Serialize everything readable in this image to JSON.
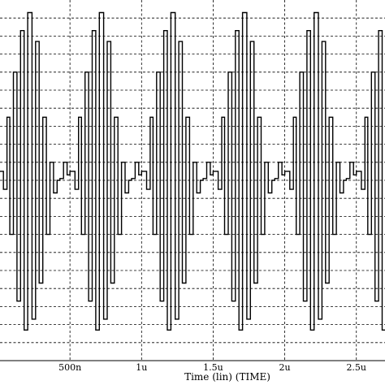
{
  "chart_data": {
    "type": "line",
    "title": "",
    "xlabel": "Time (lin) (TIME)",
    "ylabel": "",
    "xlim": [
      0.0,
      2.7
    ],
    "ylim": [
      -1.05,
      0.95
    ],
    "x_unit": "u",
    "x_ticks": [
      {
        "value": 0.5,
        "label": "500n"
      },
      {
        "value": 1.0,
        "label": "1u"
      },
      {
        "value": 1.5,
        "label": "1.5u"
      },
      {
        "value": 2.0,
        "label": "2u"
      },
      {
        "value": 2.5,
        "label": "2.5u"
      }
    ],
    "grid": {
      "horizontal": true,
      "vertical": true,
      "style": "dashed"
    },
    "series": [
      {
        "values": [
          {
            "t": 0.0,
            "y": 0.0
          },
          {
            "t": 0.035,
            "y": -0.1
          },
          {
            "t": 0.06,
            "y": 0.3
          },
          {
            "t": 0.08,
            "y": -0.35
          },
          {
            "t": 0.105,
            "y": 0.55
          },
          {
            "t": 0.13,
            "y": -0.72
          },
          {
            "t": 0.155,
            "y": 0.78
          },
          {
            "t": 0.18,
            "y": -0.88
          },
          {
            "t": 0.205,
            "y": 0.88
          },
          {
            "t": 0.235,
            "y": -0.82
          },
          {
            "t": 0.26,
            "y": 0.72
          },
          {
            "t": 0.285,
            "y": -0.62
          },
          {
            "t": 0.31,
            "y": 0.3
          },
          {
            "t": 0.335,
            "y": -0.35
          },
          {
            "t": 0.36,
            "y": 0.05
          },
          {
            "t": 0.385,
            "y": -0.12
          },
          {
            "t": 0.41,
            "y": -0.05
          },
          {
            "t": 0.43,
            "y": -0.04
          },
          {
            "t": 0.455,
            "y": 0.05
          },
          {
            "t": 0.48,
            "y": -0.02
          },
          {
            "t": 0.505,
            "y": 0.05
          }
        ]
      }
    ],
    "period": 0.5,
    "cycles": 5.4
  }
}
